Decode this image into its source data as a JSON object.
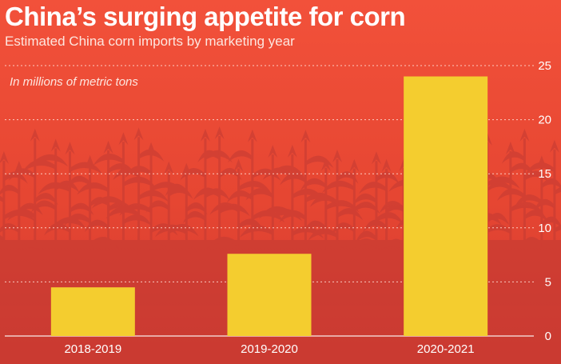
{
  "colors": {
    "background": "#e64632",
    "bar": "#f4cd2f",
    "silhouette": "#c23a33",
    "text": "#ffffff"
  },
  "chart_data": {
    "type": "bar",
    "title": "China’s surging appetite for corn",
    "subtitle": "Estimated China corn imports by marketing year",
    "unit_note": "In millions of metric tons",
    "categories": [
      "2018-2019",
      "2019-2020",
      "2020-2021"
    ],
    "values": [
      4.5,
      7.6,
      24.0
    ],
    "yticks": [
      0,
      5,
      10,
      15,
      20,
      25
    ],
    "ylim": [
      0,
      25
    ],
    "y_axis_side": "right",
    "grid": true,
    "background_image": "corn-field-silhouette"
  }
}
